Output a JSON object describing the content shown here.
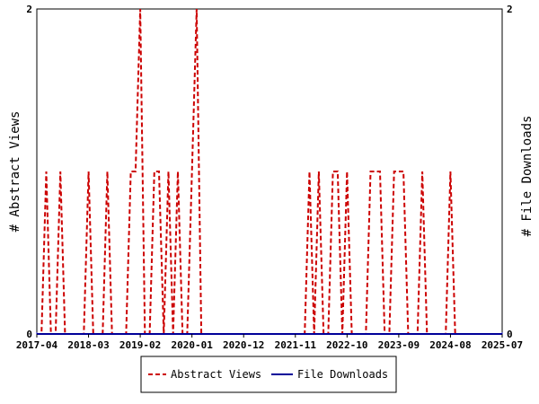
{
  "chart_data": {
    "type": "line",
    "y_left_label": "# Abstract Views",
    "y_right_label": "# File Downloads",
    "ylim": [
      0,
      2
    ],
    "y_ticks": [
      "0",
      "2"
    ],
    "x_ticks": [
      "2017-04",
      "2018-03",
      "2019-02",
      "2020-01",
      "2020-12",
      "2021-11",
      "2022-10",
      "2023-09",
      "2024-08",
      "2025-07"
    ],
    "grid": false,
    "legend_position": "bottom",
    "series": [
      {
        "name": "Abstract Views",
        "color": "#cc0000",
        "style": "dashed",
        "x": [
          "2017-04",
          "2017-05",
          "2017-06",
          "2017-07",
          "2017-08",
          "2017-09",
          "2017-10",
          "2017-11",
          "2017-12",
          "2018-01",
          "2018-02",
          "2018-03",
          "2018-04",
          "2018-05",
          "2018-06",
          "2018-07",
          "2018-08",
          "2018-09",
          "2018-10",
          "2018-11",
          "2018-12",
          "2019-01",
          "2019-02",
          "2019-03",
          "2019-04",
          "2019-05",
          "2019-06",
          "2019-07",
          "2019-08",
          "2019-09",
          "2019-10",
          "2019-11",
          "2019-12",
          "2020-01",
          "2020-02",
          "2020-03",
          "2020-04",
          "2020-05",
          "2020-06",
          "2020-07",
          "2020-08",
          "2020-09",
          "2020-10",
          "2020-11",
          "2020-12",
          "2021-01",
          "2021-02",
          "2021-03",
          "2021-04",
          "2021-05",
          "2021-06",
          "2021-07",
          "2021-08",
          "2021-09",
          "2021-10",
          "2021-11",
          "2021-12",
          "2022-01",
          "2022-02",
          "2022-03",
          "2022-04",
          "2022-05",
          "2022-06",
          "2022-07",
          "2022-08",
          "2022-09",
          "2022-10",
          "2022-11",
          "2022-12",
          "2023-01",
          "2023-02",
          "2023-03",
          "2023-04",
          "2023-05",
          "2023-06",
          "2023-07",
          "2023-08",
          "2023-09",
          "2023-10",
          "2023-11",
          "2023-12",
          "2024-01",
          "2024-02",
          "2024-03",
          "2024-04",
          "2024-05",
          "2024-06",
          "2024-07",
          "2024-08",
          "2024-09",
          "2024-10",
          "2024-11",
          "2024-12",
          "2025-01",
          "2025-02",
          "2025-03",
          "2025-04",
          "2025-05",
          "2025-06",
          "2025-07"
        ],
        "values": [
          0,
          0,
          1,
          0,
          0,
          1,
          0,
          0,
          0,
          0,
          0,
          1,
          0,
          0,
          0,
          1,
          0,
          0,
          0,
          0,
          1,
          1,
          2,
          0,
          0,
          1,
          1,
          0,
          1,
          0,
          1,
          0,
          0,
          1,
          2,
          0,
          0,
          0,
          0,
          0,
          0,
          0,
          0,
          0,
          0,
          0,
          0,
          0,
          0,
          0,
          0,
          0,
          0,
          0,
          0,
          0,
          0,
          0,
          1,
          0,
          1,
          0,
          0,
          1,
          1,
          0,
          1,
          0,
          0,
          0,
          0,
          1,
          1,
          1,
          0,
          0,
          1,
          1,
          1,
          0,
          0,
          0,
          1,
          0,
          0,
          0,
          0,
          0,
          1,
          0,
          0,
          0,
          0,
          0,
          0,
          0,
          0,
          0,
          0,
          0
        ]
      },
      {
        "name": "File Downloads",
        "color": "#000099",
        "style": "solid",
        "x": [
          "2017-04",
          "2025-07"
        ],
        "values": [
          0,
          0
        ]
      }
    ]
  }
}
